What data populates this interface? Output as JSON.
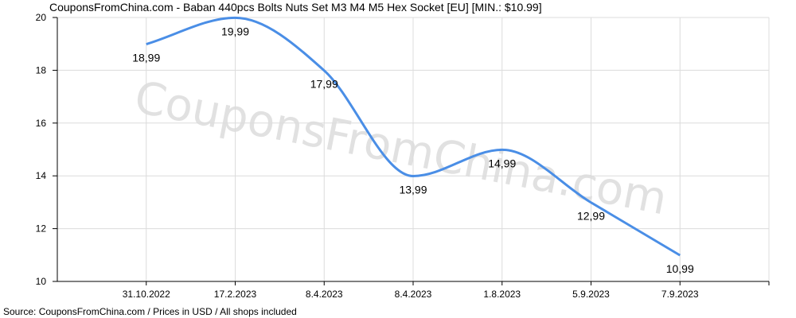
{
  "title": "CouponsFromChina.com - Baban 440pcs Bolts Nuts Set M3 M4 M5 Hex Socket [EU] [MIN.: $10.99]",
  "footer": "Source: CouponsFromChina.com / Prices in USD / All shops included",
  "watermark": "CouponsFromChina.com",
  "colors": {
    "line": "#4a8ee6",
    "grid": "#dcdcdc",
    "axis": "#000000",
    "watermark": "#e1e1e1"
  },
  "chart_data": {
    "type": "line",
    "categories": [
      "31.10.2022",
      "17.2.2023",
      "8.4.2023",
      "8.4.2023",
      "1.8.2023",
      "5.9.2023",
      "7.9.2023"
    ],
    "series": [
      {
        "values": [
          18.99,
          19.99,
          17.99,
          13.99,
          14.99,
          12.99,
          10.99
        ]
      }
    ],
    "data_labels": [
      "18,99",
      "19,99",
      "17,99",
      "13,99",
      "14,99",
      "12,99",
      "10,99"
    ],
    "y_ticks": [
      10,
      12,
      14,
      16,
      18,
      20
    ],
    "ylim": [
      10,
      20
    ],
    "grid": true,
    "smooth": true
  }
}
